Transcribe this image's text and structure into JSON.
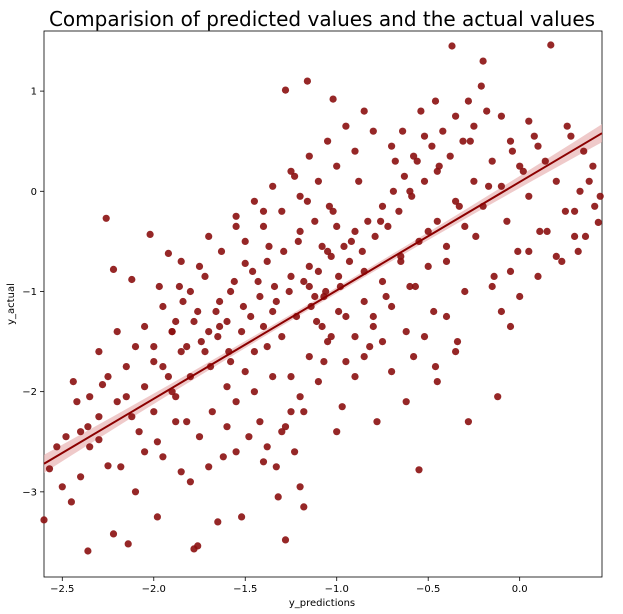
{
  "chart_data": {
    "type": "scatter",
    "title": "Comparision of predicted values and the actual values",
    "xlabel": "y_predictions",
    "ylabel": "y_actual",
    "xlim": [
      -2.6,
      0.45
    ],
    "ylim": [
      -3.85,
      1.6
    ],
    "xticks": [
      -2.5,
      -2.0,
      -1.5,
      -1.0,
      -0.5,
      0.0
    ],
    "xtick_labels": [
      "−2.5",
      "−2.0",
      "−1.5",
      "−1.0",
      "−0.5",
      "0.0"
    ],
    "yticks": [
      1,
      0,
      -1,
      -2,
      -3
    ],
    "ytick_labels": [
      "1",
      "0",
      "−1",
      "−2",
      "−3"
    ],
    "grid": false,
    "legend": "none",
    "colors": {
      "points": "#8b1010",
      "regression_line": "#8b0000",
      "confidence_band": "#e8b4b4"
    },
    "regression": {
      "x": [
        -2.6,
        0.45
      ],
      "y": [
        -2.72,
        0.58
      ],
      "ci_halfwidth_ends": 0.09,
      "ci_halfwidth_center": 0.03
    },
    "points": [
      [
        -2.6,
        -3.28
      ],
      [
        -2.36,
        -3.59
      ],
      [
        -1.78,
        -3.57
      ],
      [
        -1.76,
        -3.54
      ],
      [
        -1.28,
        -3.48
      ],
      [
        -1.65,
        -3.3
      ],
      [
        -1.98,
        -3.25
      ],
      [
        -2.14,
        -3.52
      ],
      [
        -2.22,
        -3.42
      ],
      [
        -1.52,
        -3.25
      ],
      [
        -2.25,
        -2.74
      ],
      [
        -2.57,
        -2.77
      ],
      [
        -2.53,
        -2.55
      ],
      [
        -2.35,
        -2.55
      ],
      [
        -2.3,
        -2.48
      ],
      [
        -2.18,
        -2.75
      ],
      [
        -2.05,
        -2.6
      ],
      [
        -1.95,
        -2.65
      ],
      [
        -1.85,
        -2.8
      ],
      [
        -1.7,
        -2.75
      ],
      [
        -1.62,
        -2.65
      ],
      [
        -1.55,
        -2.6
      ],
      [
        -1.8,
        -2.9
      ],
      [
        -2.1,
        -3.0
      ],
      [
        -1.4,
        -2.7
      ],
      [
        -1.2,
        -2.95
      ],
      [
        -1.18,
        -3.15
      ],
      [
        -1.32,
        -3.05
      ],
      [
        -0.55,
        -2.78
      ],
      [
        -2.44,
        -1.9
      ],
      [
        -2.28,
        -1.93
      ],
      [
        -2.36,
        -2.35
      ],
      [
        -2.42,
        -2.1
      ],
      [
        -2.3,
        -1.6
      ],
      [
        -2.2,
        -1.4
      ],
      [
        -2.1,
        -1.55
      ],
      [
        -2.0,
        -1.7
      ],
      [
        -1.92,
        -1.85
      ],
      [
        -1.88,
        -2.05
      ],
      [
        -1.82,
        -2.3
      ],
      [
        -1.75,
        -2.45
      ],
      [
        -1.68,
        -2.2
      ],
      [
        -1.6,
        -1.95
      ],
      [
        -1.55,
        -2.1
      ],
      [
        -1.5,
        -1.8
      ],
      [
        -1.45,
        -2.0
      ],
      [
        -1.42,
        -2.3
      ],
      [
        -1.38,
        -1.55
      ],
      [
        -1.35,
        -1.85
      ],
      [
        -1.3,
        -2.4
      ],
      [
        -2.26,
        -0.27
      ],
      [
        -2.22,
        -0.78
      ],
      [
        -2.12,
        -0.88
      ],
      [
        -2.02,
        -0.43
      ],
      [
        -1.92,
        -0.62
      ],
      [
        -1.97,
        -0.95
      ],
      [
        -1.84,
        -1.1
      ],
      [
        -1.78,
        -1.3
      ],
      [
        -1.72,
        -0.85
      ],
      [
        -1.66,
        -1.2
      ],
      [
        -1.63,
        -0.6
      ],
      [
        -1.58,
        -1.0
      ],
      [
        -1.55,
        -0.35
      ],
      [
        -1.5,
        -0.72
      ],
      [
        -1.47,
        -1.25
      ],
      [
        -1.43,
        -0.9
      ],
      [
        -1.4,
        -0.2
      ],
      [
        -1.37,
        -0.55
      ],
      [
        -1.33,
        -1.1
      ],
      [
        -1.28,
        1.01
      ],
      [
        -1.16,
        1.1
      ],
      [
        -1.02,
        0.92
      ],
      [
        -1.23,
        0.15
      ],
      [
        -1.2,
        -0.4
      ],
      [
        -1.15,
        -0.75
      ],
      [
        -1.12,
        -1.05
      ],
      [
        -1.08,
        -1.35
      ],
      [
        -1.05,
        -0.6
      ],
      [
        -1.02,
        -0.2
      ],
      [
        -0.98,
        -0.95
      ],
      [
        -0.95,
        -1.25
      ],
      [
        -0.92,
        -0.5
      ],
      [
        -0.88,
        0.1
      ],
      [
        -0.85,
        -0.8
      ],
      [
        -0.82,
        -1.55
      ],
      [
        -0.8,
        0.6
      ],
      [
        -0.76,
        -0.3
      ],
      [
        -0.73,
        -1.05
      ],
      [
        -0.7,
        -1.8
      ],
      [
        -0.68,
        0.3
      ],
      [
        -0.65,
        -0.65
      ],
      [
        -0.62,
        -1.4
      ],
      [
        -0.6,
        0.0
      ],
      [
        -0.57,
        -0.95
      ],
      [
        -0.54,
        0.8
      ],
      [
        -0.5,
        -0.4
      ],
      [
        -0.47,
        -1.2
      ],
      [
        -0.44,
        0.25
      ],
      [
        -0.4,
        -0.7
      ],
      [
        -0.37,
        1.45
      ],
      [
        -0.33,
        -0.15
      ],
      [
        -0.3,
        -1.0
      ],
      [
        -0.27,
        0.5
      ],
      [
        -0.24,
        -0.45
      ],
      [
        -0.2,
        1.3
      ],
      [
        -0.17,
        0.05
      ],
      [
        -0.14,
        -0.85
      ],
      [
        -0.1,
        0.75
      ],
      [
        -0.07,
        -0.3
      ],
      [
        -0.04,
        0.4
      ],
      [
        -0.01,
        -0.6
      ],
      [
        0.02,
        0.2
      ],
      [
        0.05,
        -0.05
      ],
      [
        0.08,
        0.55
      ],
      [
        0.11,
        -0.4
      ],
      [
        0.14,
        0.3
      ],
      [
        0.17,
        1.46
      ],
      [
        0.2,
        0.1
      ],
      [
        0.23,
        -0.7
      ],
      [
        0.26,
        0.65
      ],
      [
        0.3,
        -0.2
      ],
      [
        0.33,
        0.0
      ],
      [
        0.36,
        -0.45
      ],
      [
        0.4,
        0.25
      ],
      [
        0.43,
        -0.31
      ],
      [
        0.44,
        -0.05
      ],
      [
        -0.05,
        -1.35
      ],
      [
        -0.12,
        -2.05
      ],
      [
        -0.28,
        -2.3
      ],
      [
        -0.35,
        -1.6
      ],
      [
        -0.45,
        -1.9
      ],
      [
        -0.62,
        -2.1
      ],
      [
        -0.78,
        -2.3
      ],
      [
        -0.9,
        -1.85
      ],
      [
        -1.0,
        -2.4
      ],
      [
        -0.97,
        -2.15
      ],
      [
        -1.07,
        -1.7
      ],
      [
        -1.25,
        -2.2
      ],
      [
        -1.48,
        -2.45
      ],
      [
        -1.6,
        -2.35
      ],
      [
        -2.15,
        -2.05
      ],
      [
        -1.98,
        -2.5
      ],
      [
        -1.88,
        -2.3
      ],
      [
        -2.4,
        -2.4
      ],
      [
        -2.48,
        -2.45
      ],
      [
        -1.72,
        -1.6
      ],
      [
        -1.65,
        -1.45
      ],
      [
        -1.58,
        -1.7
      ],
      [
        -1.52,
        -1.4
      ],
      [
        -1.45,
        -1.6
      ],
      [
        -1.4,
        -1.35
      ],
      [
        -1.35,
        -1.2
      ],
      [
        -1.3,
        -1.45
      ],
      [
        -1.26,
        -1.0
      ],
      [
        -1.22,
        -1.25
      ],
      [
        -1.18,
        -0.9
      ],
      [
        -1.14,
        -1.15
      ],
      [
        -1.1,
        -0.8
      ],
      [
        -1.06,
        -1.0
      ],
      [
        -1.03,
        -0.65
      ],
      [
        -0.99,
        -0.85
      ],
      [
        -0.96,
        -0.55
      ],
      [
        -0.93,
        -0.7
      ],
      [
        -0.9,
        -0.4
      ],
      [
        -0.86,
        -0.6
      ],
      [
        -0.83,
        -0.3
      ],
      [
        -0.79,
        -0.45
      ],
      [
        -0.75,
        -0.15
      ],
      [
        -0.72,
        -0.35
      ],
      [
        -0.69,
        0.0
      ],
      [
        -0.66,
        -0.2
      ],
      [
        -0.63,
        0.15
      ],
      [
        -0.59,
        -0.05
      ],
      [
        -0.56,
        0.3
      ],
      [
        -0.52,
        0.1
      ],
      [
        -0.48,
        0.45
      ],
      [
        -0.45,
        0.2
      ],
      [
        -0.42,
        0.6
      ],
      [
        -0.38,
        0.35
      ],
      [
        -0.35,
        0.75
      ],
      [
        -0.31,
        0.5
      ],
      [
        -0.28,
        0.9
      ],
      [
        -0.25,
        0.65
      ],
      [
        -0.21,
        1.05
      ],
      [
        -0.18,
        0.8
      ],
      [
        -1.88,
        -1.3
      ],
      [
        -1.82,
        -1.55
      ],
      [
        -1.76,
        -1.2
      ],
      [
        -1.7,
        -1.4
      ],
      [
        -1.64,
        -1.1
      ],
      [
        -1.6,
        -1.3
      ],
      [
        -1.56,
        -0.9
      ],
      [
        -1.51,
        -1.15
      ],
      [
        -1.46,
        -0.8
      ],
      [
        -1.42,
        -1.05
      ],
      [
        -1.38,
        -0.7
      ],
      [
        -1.34,
        -0.95
      ],
      [
        -1.29,
        -0.6
      ],
      [
        -1.25,
        -0.85
      ],
      [
        -1.21,
        -0.5
      ],
      [
        -2.05,
        -1.95
      ],
      [
        -2.0,
        -2.2
      ],
      [
        -1.95,
        -1.75
      ],
      [
        -1.9,
        -2.0
      ],
      [
        -1.85,
        -1.6
      ],
      [
        -1.8,
        -1.85
      ],
      [
        -1.74,
        -1.5
      ],
      [
        -1.69,
        -1.75
      ],
      [
        -1.64,
        -1.35
      ],
      [
        -1.59,
        -1.6
      ],
      [
        -0.85,
        -1.1
      ],
      [
        -0.8,
        -1.35
      ],
      [
        -0.75,
        -0.9
      ],
      [
        -0.7,
        -1.15
      ],
      [
        -0.65,
        -0.7
      ],
      [
        -0.6,
        -0.95
      ],
      [
        -0.55,
        -0.5
      ],
      [
        -0.5,
        -0.75
      ],
      [
        -0.45,
        -0.3
      ],
      [
        -0.4,
        -0.55
      ],
      [
        -0.35,
        -0.1
      ],
      [
        -0.3,
        -0.35
      ],
      [
        -0.25,
        0.1
      ],
      [
        -0.2,
        -0.15
      ],
      [
        -0.15,
        0.3
      ],
      [
        -0.1,
        0.05
      ],
      [
        -0.05,
        0.5
      ],
      [
        0.0,
        0.25
      ],
      [
        0.05,
        0.7
      ],
      [
        0.1,
        0.45
      ],
      [
        -2.5,
        -2.95
      ],
      [
        -2.45,
        -3.1
      ],
      [
        -2.4,
        -2.85
      ],
      [
        -2.12,
        -2.25
      ],
      [
        -2.08,
        -2.4
      ],
      [
        -1.25,
        -1.85
      ],
      [
        -1.2,
        -2.05
      ],
      [
        -1.15,
        -1.65
      ],
      [
        -1.1,
        -1.9
      ],
      [
        -1.05,
        -1.5
      ],
      [
        -0.95,
        -1.7
      ],
      [
        -0.9,
        -1.45
      ],
      [
        -0.85,
        -1.65
      ],
      [
        -0.8,
        -1.25
      ],
      [
        -0.75,
        -1.5
      ],
      [
        -1.55,
        -0.25
      ],
      [
        -1.5,
        -0.5
      ],
      [
        -1.45,
        -0.1
      ],
      [
        -1.4,
        -0.35
      ],
      [
        -1.35,
        0.05
      ],
      [
        -1.3,
        -0.2
      ],
      [
        -1.25,
        0.2
      ],
      [
        -1.2,
        -0.05
      ],
      [
        -1.15,
        0.35
      ],
      [
        -1.1,
        0.1
      ],
      [
        -1.05,
        0.5
      ],
      [
        -1.0,
        0.25
      ],
      [
        -0.95,
        0.65
      ],
      [
        -0.9,
        0.4
      ],
      [
        -0.85,
        0.8
      ],
      [
        -1.7,
        -0.45
      ],
      [
        -1.75,
        -0.75
      ],
      [
        -1.8,
        -1.0
      ],
      [
        -1.85,
        -0.7
      ],
      [
        -1.9,
        -1.4
      ],
      [
        -0.15,
        -0.95
      ],
      [
        -0.1,
        -1.2
      ],
      [
        -0.05,
        -0.8
      ],
      [
        0.0,
        -1.05
      ],
      [
        0.05,
        -0.6
      ],
      [
        0.1,
        -0.85
      ],
      [
        0.15,
        -0.4
      ],
      [
        0.2,
        -0.65
      ],
      [
        0.25,
        -0.2
      ],
      [
        0.3,
        -0.45
      ],
      [
        -0.58,
        -1.65
      ],
      [
        -0.52,
        -1.45
      ],
      [
        -0.46,
        -1.75
      ],
      [
        -0.4,
        -1.25
      ],
      [
        -0.34,
        -1.5
      ],
      [
        -1.38,
        -2.55
      ],
      [
        -1.33,
        -2.75
      ],
      [
        -1.28,
        -2.35
      ],
      [
        -1.23,
        -2.6
      ],
      [
        -1.18,
        -2.2
      ],
      [
        -2.35,
        -2.05
      ],
      [
        -2.3,
        -2.25
      ],
      [
        -2.25,
        -1.85
      ],
      [
        -2.2,
        -2.1
      ],
      [
        -2.15,
        -1.75
      ],
      [
        -2.05,
        -1.35
      ],
      [
        -2.0,
        -1.55
      ],
      [
        -1.95,
        -1.15
      ],
      [
        -1.9,
        -1.4
      ],
      [
        -1.86,
        -0.95
      ],
      [
        -0.7,
        0.45
      ],
      [
        -0.64,
        0.6
      ],
      [
        -0.58,
        0.35
      ],
      [
        -0.52,
        0.55
      ],
      [
        -0.46,
        0.9
      ],
      [
        -1.0,
        -0.35
      ],
      [
        -1.04,
        -0.15
      ],
      [
        -1.08,
        -0.55
      ],
      [
        -1.12,
        -0.3
      ],
      [
        -1.16,
        -0.1
      ],
      [
        -0.99,
        -1.2
      ],
      [
        -1.03,
        -1.45
      ],
      [
        -1.07,
        -1.05
      ],
      [
        -1.11,
        -1.3
      ],
      [
        -1.15,
        -0.95
      ],
      [
        0.35,
        0.4
      ],
      [
        0.38,
        0.1
      ],
      [
        0.41,
        -0.15
      ],
      [
        0.32,
        -0.6
      ],
      [
        0.28,
        0.55
      ]
    ]
  }
}
